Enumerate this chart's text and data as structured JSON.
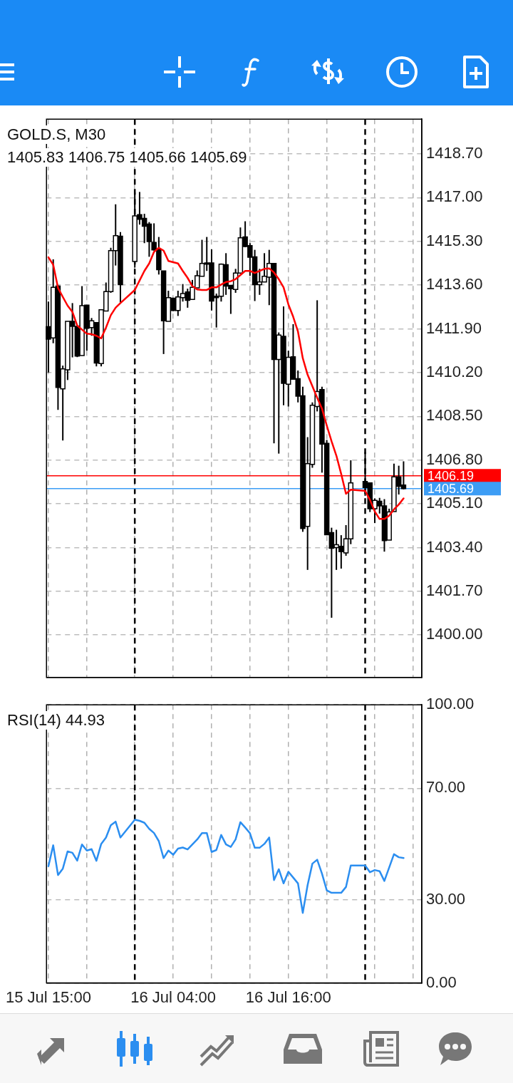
{
  "chart_data": [
    {
      "type": "candlestick",
      "title": "GOLD.S, M30",
      "subtitle": "1405.83 1406.75 1405.66 1405.69",
      "x": [
        "--07-15T15:00",
        "--07-15T15:30",
        "--07-15T16:00",
        "--07-15T16:30",
        "--07-15T17:00",
        "--07-15T17:30",
        "--07-15T18:00",
        "--07-15T18:30",
        "--07-15T19:00",
        "--07-15T19:30",
        "--07-15T20:00",
        "--07-15T20:30",
        "--07-15T21:00",
        "--07-15T21:30",
        "--07-15T22:00",
        "--07-15T22:30",
        "--07-16T00:00",
        "--07-16T00:30",
        "--07-16T01:00",
        "--07-16T01:30",
        "--07-16T02:00",
        "--07-16T02:30",
        "--07-16T03:00",
        "--07-16T03:30",
        "--07-16T04:00",
        "--07-16T04:30",
        "--07-16T05:00",
        "--07-16T05:30",
        "--07-16T06:00",
        "--07-16T06:30",
        "--07-16T07:00",
        "--07-16T07:30",
        "--07-16T08:00",
        "--07-16T08:30",
        "--07-16T09:00",
        "--07-16T09:30",
        "--07-16T10:00",
        "--07-16T10:30",
        "--07-16T11:00",
        "--07-16T11:30",
        "--07-16T12:00",
        "--07-16T12:30",
        "--07-16T13:00",
        "--07-16T13:30",
        "--07-16T14:00",
        "--07-16T14:30",
        "--07-16T15:00",
        "--07-16T15:30",
        "--07-16T16:00",
        "--07-16T16:30",
        "--07-16T17:00",
        "--07-16T17:30",
        "--07-16T18:00",
        "--07-16T18:30",
        "--07-16T19:00",
        "--07-16T19:30",
        "--07-16T20:00",
        "--07-16T20:30",
        "--07-16T21:00",
        "--07-16T21:30",
        "--07-16T22:00",
        "--07-16T22:30",
        "--07-17T00:00",
        "--07-17T00:30",
        "--07-17T01:00",
        "--07-17T01:30",
        "--07-17T02:00",
        "--07-17T02:30",
        "--07-17T03:00",
        "--07-17T03:30",
        "--07-17T04:00"
      ],
      "ohlc": [
        [
          1411.98,
          1412.96,
          1410.2,
          1411.5
        ],
        [
          1411.55,
          1414.6,
          1411.34,
          1413.51
        ],
        [
          1413.56,
          1413.6,
          1408.75,
          1409.62
        ],
        [
          1409.57,
          1410.47,
          1407.56,
          1410.34
        ],
        [
          1410.31,
          1412.19,
          1409.91,
          1412.19
        ],
        [
          1412.19,
          1412.9,
          1410.79,
          1412.0
        ],
        [
          1412.0,
          1412.0,
          1410.8,
          1410.84
        ],
        [
          1410.86,
          1413.56,
          1410.86,
          1412.8
        ],
        [
          1412.82,
          1412.82,
          1411.05,
          1411.92
        ],
        [
          1411.95,
          1412.32,
          1411.63,
          1412.21
        ],
        [
          1412.14,
          1412.14,
          1410.44,
          1410.57
        ],
        [
          1410.55,
          1412.66,
          1410.44,
          1412.64
        ],
        [
          1412.59,
          1413.7,
          1412.59,
          1413.35
        ],
        [
          1413.35,
          1415.05,
          1413.3,
          1414.94
        ],
        [
          1414.94,
          1416.74,
          1414.36,
          1415.52
        ],
        [
          1415.5,
          1415.66,
          1412.9,
          1413.62
        ],
        [
          1414.52,
          1417.2,
          1414.28,
          1416.29
        ],
        [
          1416.34,
          1417.22,
          1415.95,
          1416.16
        ],
        [
          1416.19,
          1416.37,
          1415.23,
          1415.89
        ],
        [
          1415.97,
          1416.05,
          1414.7,
          1415.29
        ],
        [
          1415.26,
          1416.0,
          1414.94,
          1414.97
        ],
        [
          1414.97,
          1415.47,
          1414.01,
          1414.2
        ],
        [
          1414.15,
          1414.15,
          1410.92,
          1412.21
        ],
        [
          1412.19,
          1413.38,
          1412.19,
          1413.11
        ],
        [
          1413.09,
          1413.09,
          1412.59,
          1412.61
        ],
        [
          1412.61,
          1413.38,
          1412.4,
          1413.14
        ],
        [
          1413.11,
          1413.64,
          1412.96,
          1413.27
        ],
        [
          1413.33,
          1413.46,
          1412.72,
          1413.01
        ],
        [
          1413.04,
          1413.8,
          1413.04,
          1413.51
        ],
        [
          1413.49,
          1414.17,
          1413.49,
          1413.96
        ],
        [
          1413.94,
          1415.36,
          1413.94,
          1414.44
        ],
        [
          1414.46,
          1415.47,
          1414.15,
          1414.41
        ],
        [
          1414.46,
          1414.99,
          1412.61,
          1412.98
        ],
        [
          1413.17,
          1413.27,
          1411.95,
          1413.11
        ],
        [
          1413.17,
          1414.44,
          1412.96,
          1414.41
        ],
        [
          1414.39,
          1414.84,
          1413.22,
          1413.56
        ],
        [
          1413.59,
          1413.59,
          1412.48,
          1413.46
        ],
        [
          1413.43,
          1414.23,
          1413.3,
          1414.07
        ],
        [
          1414.07,
          1415.84,
          1414.07,
          1415.44
        ],
        [
          1415.47,
          1416.08,
          1415.07,
          1415.1
        ],
        [
          1415.13,
          1415.23,
          1413.96,
          1414.68
        ],
        [
          1414.7,
          1414.97,
          1412.98,
          1413.62
        ],
        [
          1413.62,
          1414.23,
          1413.22,
          1413.72
        ],
        [
          1413.72,
          1414.84,
          1413.72,
          1413.94
        ],
        [
          1413.91,
          1414.97,
          1412.82,
          1414.44
        ],
        [
          1414.44,
          1414.44,
          1407.45,
          1410.71
        ],
        [
          1410.71,
          1411.76,
          1407.05,
          1411.66
        ],
        [
          1411.61,
          1412.77,
          1408.93,
          1409.78
        ],
        [
          1409.75,
          1411.05,
          1408.88,
          1410.79
        ],
        [
          1410.81,
          1412.08,
          1409.94,
          1409.94
        ],
        [
          1409.96,
          1410.28,
          1409.04,
          1409.28
        ],
        [
          1409.3,
          1409.65,
          1404.01,
          1404.14
        ],
        [
          1404.22,
          1407.69,
          1402.53,
          1406.66
        ],
        [
          1406.63,
          1409.04,
          1406.5,
          1408.93
        ],
        [
          1408.88,
          1413.01,
          1408.69,
          1409.46
        ],
        [
          1409.54,
          1409.65,
          1406.31,
          1407.42
        ],
        [
          1407.45,
          1407.58,
          1403.9,
          1403.9
        ],
        [
          1403.98,
          1404.17,
          1400.67,
          1403.37
        ],
        [
          1403.4,
          1404.09,
          1402.53,
          1403.51
        ],
        [
          1403.45,
          1403.88,
          1402.58,
          1403.24
        ],
        [
          1403.19,
          1404.27,
          1403.08,
          1403.74
        ],
        [
          1403.74,
          1406.79,
          1403.53,
          1405.91
        ],
        [
          1405.97,
          1407.11,
          1405.41,
          1405.73
        ],
        [
          1405.91,
          1405.91,
          1404.78,
          1404.91
        ],
        [
          1404.91,
          1405.31,
          1404.35,
          1405.23
        ],
        [
          1405.2,
          1405.33,
          1404.72,
          1405.02
        ],
        [
          1405.02,
          1405.28,
          1403.24,
          1403.67
        ],
        [
          1403.69,
          1404.91,
          1403.69,
          1404.78
        ],
        [
          1404.8,
          1406.66,
          1404.8,
          1406.15
        ],
        [
          1406.15,
          1406.58,
          1405.46,
          1405.78
        ],
        [
          1405.83,
          1406.75,
          1405.66,
          1405.69
        ]
      ],
      "color": "#000000",
      "colors": [
        "#000000",
        "#ffffff",
        "#000000",
        "#ffffff",
        "#ffffff",
        "#000000",
        "#000000",
        "#ffffff",
        "#000000",
        "#ffffff",
        "#000000",
        "#ffffff",
        "#ffffff",
        "#ffffff",
        "#ffffff",
        "#000000",
        "#ffffff",
        "#000000",
        "#000000",
        "#000000",
        "#000000",
        "#000000",
        "#000000",
        "#ffffff",
        "#000000",
        "#ffffff",
        "#ffffff",
        "#000000",
        "#ffffff",
        "#ffffff",
        "#ffffff",
        "#000000",
        "#000000",
        "#000000",
        "#ffffff",
        "#000000",
        "#000000",
        "#ffffff",
        "#ffffff",
        "#000000",
        "#000000",
        "#000000",
        "#ffffff",
        "#ffffff",
        "#ffffff",
        "#000000",
        "#ffffff",
        "#000000",
        "#ffffff",
        "#000000",
        "#000000",
        "#000000",
        "#ffffff",
        "#ffffff",
        "#ffffff",
        "#000000",
        "#000000",
        "#000000",
        "#ffffff",
        "#000000",
        "#ffffff",
        "#ffffff",
        "#000000",
        "#000000",
        "#ffffff",
        "#000000",
        "#000000",
        "#ffffff",
        "#ffffff",
        "#000000",
        "#000000"
      ],
      "series": [
        {
          "type": "line",
          "color": "#ff0000",
          "values": [
            1414.68,
            1414.39,
            1413.49,
            1413.14,
            1412.8,
            1412.56,
            1412.03,
            1411.87,
            1411.71,
            1411.69,
            1411.63,
            1411.53,
            1411.95,
            1412.43,
            1412.72,
            1412.9,
            1413.41,
            1413.78,
            1414.15,
            1414.44,
            1414.89,
            1415.05,
            1414.94,
            1414.54,
            1414.49,
            1414.44,
            1414.15,
            1413.88,
            1413.56,
            1413.43,
            1413.41,
            1413.41,
            1413.51,
            1413.51,
            1413.62,
            1413.72,
            1413.75,
            1413.83,
            1413.99,
            1414.15,
            1414.15,
            1414.07,
            1414.15,
            1414.23,
            1414.25,
            1414.09,
            1413.83,
            1413.51,
            1412.85,
            1412.37,
            1411.79,
            1410.76,
            1410.12,
            1409.67,
            1409.22,
            1408.8,
            1408.14,
            1407.53,
            1406.97,
            1406.26,
            1405.49,
            1405.65,
            1405.6,
            1405.25,
            1404.8,
            1404.51,
            1404.51,
            1404.64,
            1404.88,
            1405.07,
            1405.31
          ]
        }
      ],
      "xlim": [
        "--07-15T14:48",
        "--07-17T05:54"
      ],
      "ylim": [
        1398.35,
        1420.05
      ],
      "xticks": [
        {
          "value": "--07-15T15:00",
          "label": null
        },
        {
          "value": "--07-15T19:00",
          "label": null
        },
        {
          "value": "--07-16T00:00",
          "label": null
        },
        {
          "value": "--07-16T04:00",
          "label": null
        },
        {
          "value": "--07-16T08:00",
          "label": null
        },
        {
          "value": "--07-16T12:00",
          "label": null
        },
        {
          "value": "--07-16T16:00",
          "label": null
        },
        {
          "value": "--07-16T20:00",
          "label": null
        },
        {
          "value": "--07-17T01:00",
          "label": null
        },
        {
          "value": "--07-17T05:00",
          "label": null
        }
      ],
      "yticks": [
        {
          "value": 1400,
          "label": "1400.00"
        },
        {
          "value": 1401.7,
          "label": "1401.70"
        },
        {
          "value": 1403.4,
          "label": "1403.40"
        },
        {
          "value": 1405.1,
          "label": "1405.10"
        },
        {
          "value": 1406.8,
          "label": "1406.80"
        },
        {
          "value": 1408.5,
          "label": "1408.50"
        },
        {
          "value": 1410.2,
          "label": "1410.20"
        },
        {
          "value": 1411.9,
          "label": "1411.90"
        },
        {
          "value": 1413.6,
          "label": "1413.60"
        },
        {
          "value": 1415.3,
          "label": "1415.30"
        },
        {
          "value": 1417,
          "label": "1417.00"
        },
        {
          "value": 1418.7,
          "label": "1418.70"
        }
      ],
      "tick_labels": "y",
      "grid": true,
      "legend": false,
      "marker": "none",
      "ref_lines": [
        {
          "axis": "x",
          "value": "--07-16T00:00",
          "color": "#000000",
          "line_style": "dashed"
        },
        {
          "axis": "x",
          "value": "--07-17T00:00",
          "color": "#000000",
          "line_style": "dashed"
        },
        {
          "axis": "y",
          "value": 1406.19,
          "label": "1406.19",
          "color": "#ff0000"
        },
        {
          "axis": "y",
          "value": 1405.69,
          "label": "1405.69",
          "color": "#3d9df5"
        }
      ]
    },
    {
      "type": "line",
      "title": "RSI(14) 44.93",
      "x": [
        "--07-15T15:00",
        "--07-15T15:30",
        "--07-15T16:00",
        "--07-15T16:30",
        "--07-15T17:00",
        "--07-15T17:30",
        "--07-15T18:00",
        "--07-15T18:30",
        "--07-15T19:00",
        "--07-15T19:30",
        "--07-15T20:00",
        "--07-15T20:30",
        "--07-15T21:00",
        "--07-15T21:30",
        "--07-15T22:00",
        "--07-15T22:30",
        "--07-16T00:00",
        "--07-16T00:30",
        "--07-16T01:00",
        "--07-16T01:30",
        "--07-16T02:00",
        "--07-16T02:30",
        "--07-16T03:00",
        "--07-16T03:30",
        "--07-16T04:00",
        "--07-16T04:30",
        "--07-16T05:00",
        "--07-16T05:30",
        "--07-16T06:00",
        "--07-16T06:30",
        "--07-16T07:00",
        "--07-16T07:30",
        "--07-16T08:00",
        "--07-16T08:30",
        "--07-16T09:00",
        "--07-16T09:30",
        "--07-16T10:00",
        "--07-16T10:30",
        "--07-16T11:00",
        "--07-16T11:30",
        "--07-16T12:00",
        "--07-16T12:30",
        "--07-16T13:00",
        "--07-16T13:30",
        "--07-16T14:00",
        "--07-16T14:30",
        "--07-16T15:00",
        "--07-16T15:30",
        "--07-16T16:00",
        "--07-16T16:30",
        "--07-16T17:00",
        "--07-16T17:30",
        "--07-16T18:00",
        "--07-16T18:30",
        "--07-16T19:00",
        "--07-16T19:30",
        "--07-16T20:00",
        "--07-16T20:30",
        "--07-16T21:00",
        "--07-16T21:30",
        "--07-16T22:00",
        "--07-16T22:30",
        "--07-17T00:00",
        "--07-17T00:30",
        "--07-17T01:00",
        "--07-17T01:30",
        "--07-17T02:00",
        "--07-17T02:30",
        "--07-17T03:00",
        "--07-17T03:30",
        "--07-17T04:00"
      ],
      "series": [
        {
          "color": "#2b8ef0",
          "values": [
            42.0,
            49.5,
            38.8,
            41.1,
            47.3,
            46.8,
            44.0,
            49.8,
            47.6,
            48.1,
            43.9,
            50.0,
            52.3,
            56.7,
            58.0,
            52.3,
            58.7,
            58.3,
            57.6,
            55.4,
            53.9,
            51.0,
            44.9,
            47.6,
            46.1,
            48.3,
            48.7,
            48.0,
            49.8,
            51.6,
            53.9,
            53.9,
            47.1,
            47.8,
            53.2,
            49.8,
            48.9,
            51.6,
            57.8,
            55.9,
            53.8,
            48.6,
            48.6,
            50.0,
            52.3,
            37.0,
            40.9,
            35.8,
            40.0,
            37.9,
            35.8,
            25.2,
            35.1,
            42.9,
            44.3,
            39.3,
            33.3,
            32.4,
            32.4,
            32.4,
            34.5,
            42.2,
            42.2,
            39.8,
            40.6,
            40.2,
            36.7,
            41.5,
            46.3,
            45.2,
            44.93
          ]
        }
      ],
      "xlim": [
        "--07-15T14:48",
        "--07-17T05:54"
      ],
      "ylim": [
        0,
        100
      ],
      "xticks": [
        {
          "value": "--07-15T15:00",
          "label": "15 Jul 15:00"
        },
        {
          "value": "--07-15T19:00",
          "label": null
        },
        {
          "value": "--07-16T00:00",
          "label": null
        },
        {
          "value": "--07-16T04:00",
          "label": "16 Jul 04:00"
        },
        {
          "value": "--07-16T08:00",
          "label": null
        },
        {
          "value": "--07-16T12:00",
          "label": null
        },
        {
          "value": "--07-16T16:00",
          "label": "16 Jul 16:00"
        },
        {
          "value": "--07-16T20:00",
          "label": null
        },
        {
          "value": "--07-17T01:00",
          "label": null
        },
        {
          "value": "--07-17T05:00",
          "label": null
        }
      ],
      "yticks": [
        {
          "value": 0,
          "label": "0.00"
        },
        {
          "value": 30,
          "label": "30.00"
        },
        {
          "value": 70,
          "label": "70.00"
        },
        {
          "value": 100,
          "label": "100.00"
        }
      ],
      "grid": true,
      "legend": false,
      "marker": "none",
      "ref_lines": [
        {
          "axis": "x",
          "value": "--07-16T00:00",
          "color": "#000000",
          "line_style": "dashed"
        },
        {
          "axis": "x",
          "value": "--07-17T00:00",
          "color": "#000000",
          "line_style": "dashed"
        }
      ]
    }
  ]
}
